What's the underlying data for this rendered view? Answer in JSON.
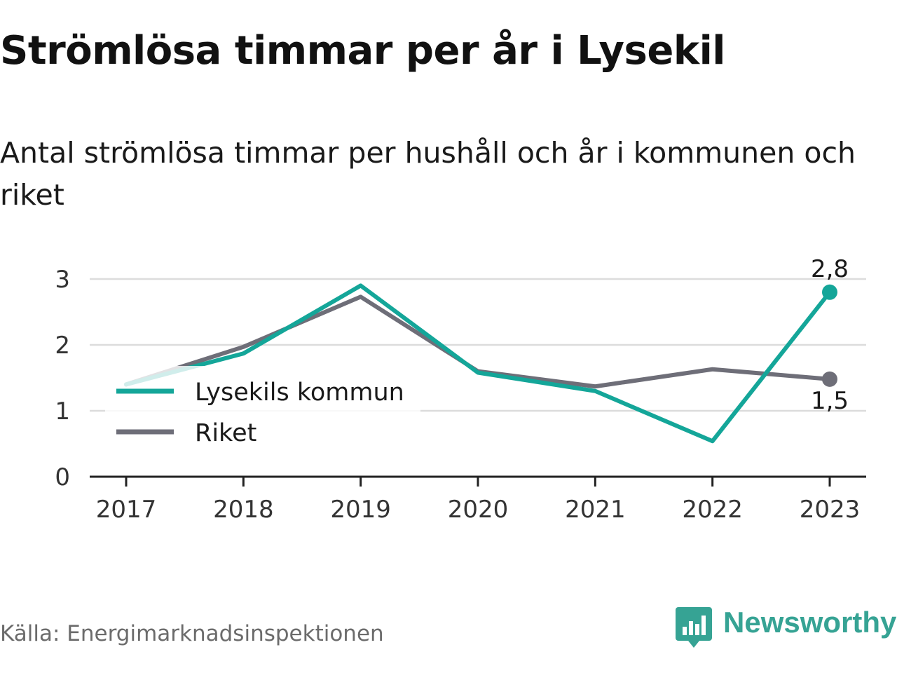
{
  "title": "Strömlösa timmar per år i Lysekil",
  "subtitle": "Antal strömlösa timmar per hushåll och år i kommunen och riket",
  "source": "Källa: Energimarknadsinspektionen",
  "logo_text": "Newsworthy",
  "colors": {
    "lysekil": "#14a699",
    "riket": "#6e6e78",
    "grid": "#dcdcdc",
    "brand": "#36a394"
  },
  "chart_data": {
    "type": "line",
    "categories": [
      "2017",
      "2018",
      "2019",
      "2020",
      "2021",
      "2022",
      "2023"
    ],
    "yticks": [
      "0",
      "1",
      "2",
      "3"
    ],
    "ylim": [
      0,
      3
    ],
    "grid": true,
    "legend_position": "left-middle",
    "series": [
      {
        "name": "Lysekils kommun",
        "values": [
          1.4,
          1.87,
          2.9,
          1.58,
          1.3,
          0.54,
          2.8
        ],
        "end_label": "2,8"
      },
      {
        "name": "Riket",
        "values": [
          1.4,
          1.97,
          2.73,
          1.6,
          1.37,
          1.63,
          1.48
        ],
        "end_label": "1,5"
      }
    ]
  }
}
